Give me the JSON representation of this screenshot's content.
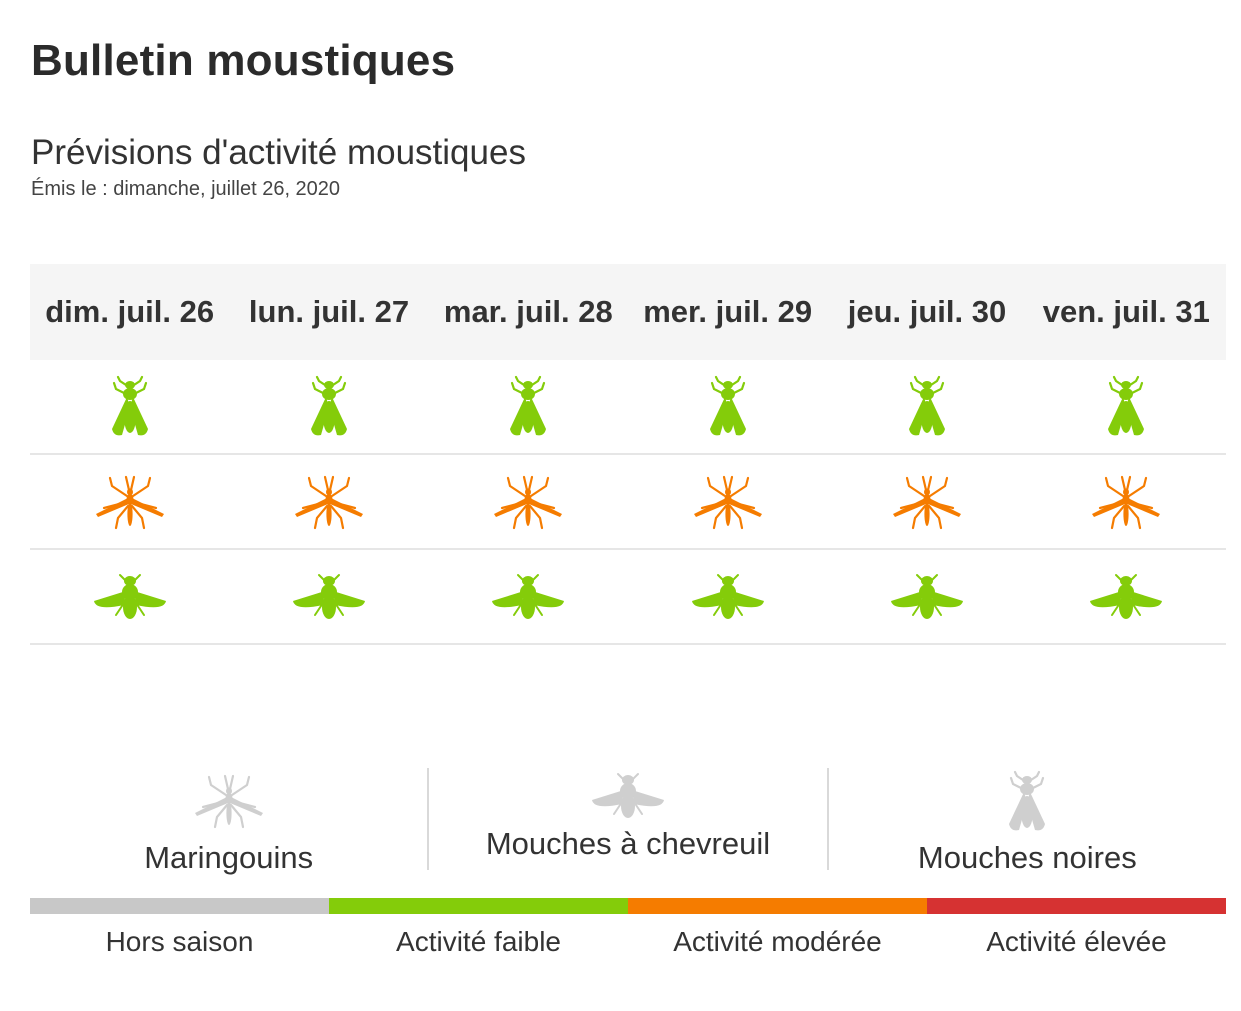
{
  "header": {
    "title": "Bulletin moustiques",
    "subtitle": "Prévisions d'activité moustiques",
    "issued": "Émis le : dimanche, juillet 26, 2020"
  },
  "days": [
    "dim. juil. 26",
    "lun. juil. 27",
    "mar. juil. 28",
    "mer. juil. 29",
    "jeu. juil. 30",
    "ven. juil. 31"
  ],
  "rows": [
    {
      "insect": "blackfly",
      "icon": "blackfly-icon",
      "levels": [
        "faible",
        "faible",
        "faible",
        "faible",
        "faible",
        "faible"
      ]
    },
    {
      "insect": "mosquito",
      "icon": "mosquito-icon",
      "levels": [
        "moderee",
        "moderee",
        "moderee",
        "moderee",
        "moderee",
        "moderee"
      ]
    },
    {
      "insect": "deerfly",
      "icon": "deerfly-icon",
      "levels": [
        "faible",
        "faible",
        "faible",
        "faible",
        "faible",
        "faible"
      ]
    }
  ],
  "legend": {
    "maringouins": "Maringouins",
    "mouches_chevreuil": "Mouches à chevreuil",
    "mouches_noires": "Mouches noires"
  },
  "scale": [
    {
      "key": "hors",
      "label": "Hors saison",
      "color": "#c8c8c8"
    },
    {
      "key": "faible",
      "label": "Activité faible",
      "color": "#84cc0a"
    },
    {
      "key": "moderee",
      "label": "Activité modérée",
      "color": "#f57c00"
    },
    {
      "key": "elevee",
      "label": "Activité élevée",
      "color": "#d63232"
    }
  ]
}
